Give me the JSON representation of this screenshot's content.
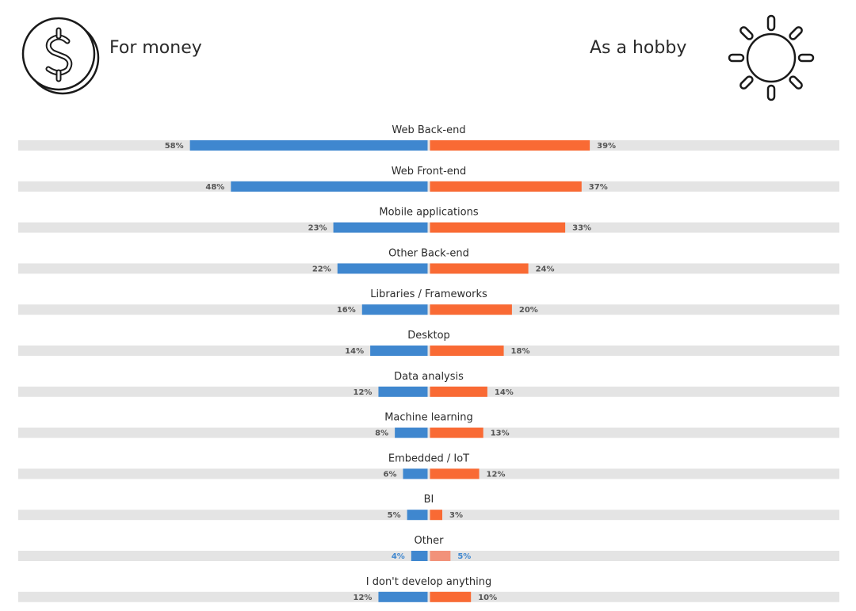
{
  "header": {
    "left_label": "For money",
    "right_label": "As a hobby",
    "left_icon": "dollar-coin-icon",
    "right_icon": "sun-icon"
  },
  "colors": {
    "left_bar": "#3f87cf",
    "right_bar": "#f96a34",
    "right_bar_faded": "#f2927a",
    "track": "#e4e4e4",
    "label_default": "#555555",
    "label_highlight": "#3f87cf"
  },
  "chart_data": {
    "type": "bar",
    "orientation": "diverging-horizontal",
    "categories": [
      "Web Back-end",
      "Web Front-end",
      "Mobile applications",
      "Other Back-end",
      "Libraries / Frameworks",
      "Desktop",
      "Data analysis",
      "Machine learning",
      "Embedded / IoT",
      "BI",
      "Other",
      "I don't develop anything"
    ],
    "series": [
      {
        "name": "For money",
        "values": [
          58,
          48,
          23,
          22,
          16,
          14,
          12,
          8,
          6,
          5,
          4,
          12
        ],
        "labels": [
          "58%",
          "48%",
          "23%",
          "22%",
          "16%",
          "14%",
          "12%",
          "8%",
          "6%",
          "5%",
          "4%",
          "12%"
        ]
      },
      {
        "name": "As a hobby",
        "values": [
          39,
          37,
          33,
          24,
          20,
          18,
          14,
          13,
          12,
          3,
          5,
          10
        ],
        "labels": [
          "39%",
          "37%",
          "33%",
          "24%",
          "20%",
          "18%",
          "14%",
          "13%",
          "12%",
          "3%",
          "5%",
          "10%"
        ]
      }
    ],
    "highlight_category": "Other",
    "value_unit": "%",
    "grid": false,
    "legend": "top"
  }
}
